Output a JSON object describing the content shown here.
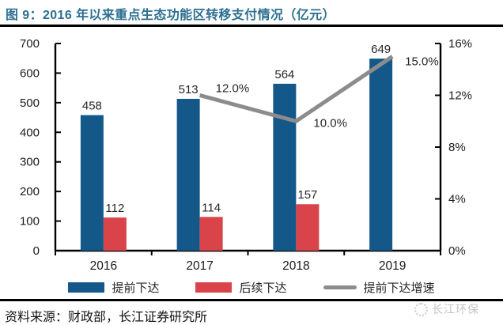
{
  "header": {
    "title": "图 9：2016 年以来重点生态功能区转移支付情况（亿元）"
  },
  "chart_data": {
    "type": "bar",
    "subtype": "bar+line combo",
    "categories": [
      "2016",
      "2017",
      "2018",
      "2019"
    ],
    "series": [
      {
        "name": "提前下达",
        "type": "bar",
        "axis": "left",
        "color": "#14588a",
        "values": [
          458,
          513,
          564,
          649
        ],
        "value_labels": [
          "458",
          "513",
          "564",
          "649"
        ]
      },
      {
        "name": "后续下达",
        "type": "bar",
        "axis": "left",
        "color": "#d9444b",
        "values": [
          112,
          114,
          157,
          null
        ],
        "value_labels": [
          "112",
          "114",
          "157",
          null
        ]
      },
      {
        "name": "提前下达增速",
        "type": "line",
        "axis": "right",
        "color": "#8c8c8c",
        "values": [
          null,
          12,
          10,
          15
        ],
        "value_labels": [
          null,
          "12.0%",
          "10.0%",
          "15.0%"
        ]
      }
    ],
    "left_axis": {
      "min": 0,
      "max": 700,
      "step": 100,
      "tick_labels": [
        "0",
        "100",
        "200",
        "300",
        "400",
        "500",
        "600",
        "700"
      ]
    },
    "right_axis": {
      "min": 0,
      "max": 16,
      "step": 4,
      "tick_labels": [
        "0%",
        "4%",
        "8%",
        "12%",
        "16%"
      ]
    },
    "grid": false,
    "legend_position": "bottom",
    "axis_color": "#000000",
    "label_color": "#262626"
  },
  "footer": {
    "source": "资料来源：财政部，长江证券研究所",
    "watermark": "长江环保"
  }
}
